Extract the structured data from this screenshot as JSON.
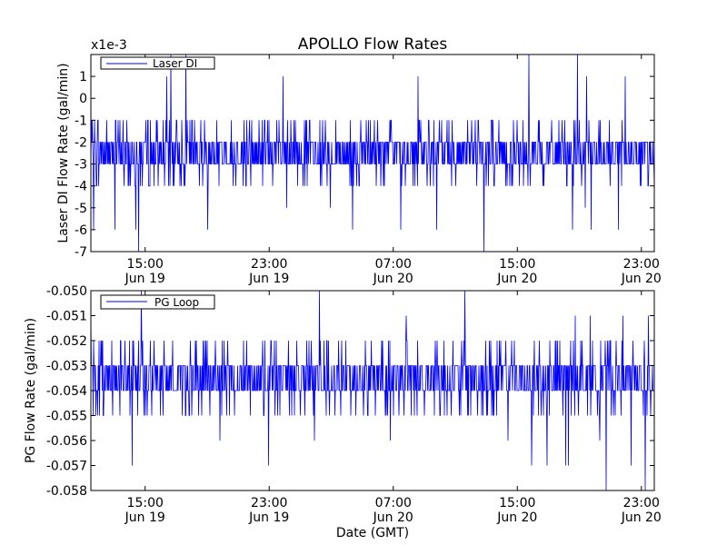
{
  "figure": {
    "title": "APOLLO Flow Rates",
    "xlabel": "Date (GMT)"
  },
  "colors": {
    "series": "#0000ff",
    "axes": "#000000",
    "background": "#ffffff"
  },
  "chart_data": [
    {
      "type": "line",
      "multiplier_label": "x1e-3",
      "ylabel": "Laser DI Flow Rate (gal/min)",
      "ylim": [
        -7,
        2
      ],
      "yticks": [
        1,
        0,
        -1,
        -2,
        -3,
        -4,
        -5,
        -6,
        -7
      ],
      "xlim": [
        "2014-06-19 11:30",
        "2014-06-20 23:50"
      ],
      "xticks": [
        {
          "time": "2014-06-19 15:00",
          "hour": "15:00",
          "date": "Jun 19"
        },
        {
          "time": "2014-06-19 23:00",
          "hour": "23:00",
          "date": "Jun 19"
        },
        {
          "time": "2014-06-20 07:00",
          "hour": "07:00",
          "date": "Jun 20"
        },
        {
          "time": "2014-06-20 15:00",
          "hour": "15:00",
          "date": "Jun 20"
        },
        {
          "time": "2014-06-20 23:00",
          "hour": "23:00",
          "date": "Jun 20"
        }
      ],
      "series": [
        {
          "name": "Laser DI",
          "typical_range": [
            -4,
            -1
          ],
          "center": -2.5,
          "min": -7,
          "max": 2
        }
      ],
      "legend": "upper-left",
      "grid": false
    },
    {
      "type": "line",
      "ylabel": "PG Flow Rate (gal/min)",
      "ylim": [
        -0.058,
        -0.05
      ],
      "yticks": [
        "-0.050",
        "-0.051",
        "-0.052",
        "-0.053",
        "-0.054",
        "-0.055",
        "-0.056",
        "-0.057",
        "-0.058"
      ],
      "xlim": [
        "2014-06-19 11:30",
        "2014-06-20 23:50"
      ],
      "xticks": [
        {
          "time": "2014-06-19 15:00",
          "hour": "15:00",
          "date": "Jun 19"
        },
        {
          "time": "2014-06-19 23:00",
          "hour": "23:00",
          "date": "Jun 19"
        },
        {
          "time": "2014-06-20 07:00",
          "hour": "07:00",
          "date": "Jun 20"
        },
        {
          "time": "2014-06-20 15:00",
          "hour": "15:00",
          "date": "Jun 20"
        },
        {
          "time": "2014-06-20 23:00",
          "hour": "23:00",
          "date": "Jun 20"
        }
      ],
      "series": [
        {
          "name": "PG Loop",
          "typical_range": [
            -0.055,
            -0.052
          ],
          "center": -0.0535,
          "min": -0.058,
          "max": -0.05
        }
      ],
      "legend": "upper-left",
      "grid": false
    }
  ]
}
